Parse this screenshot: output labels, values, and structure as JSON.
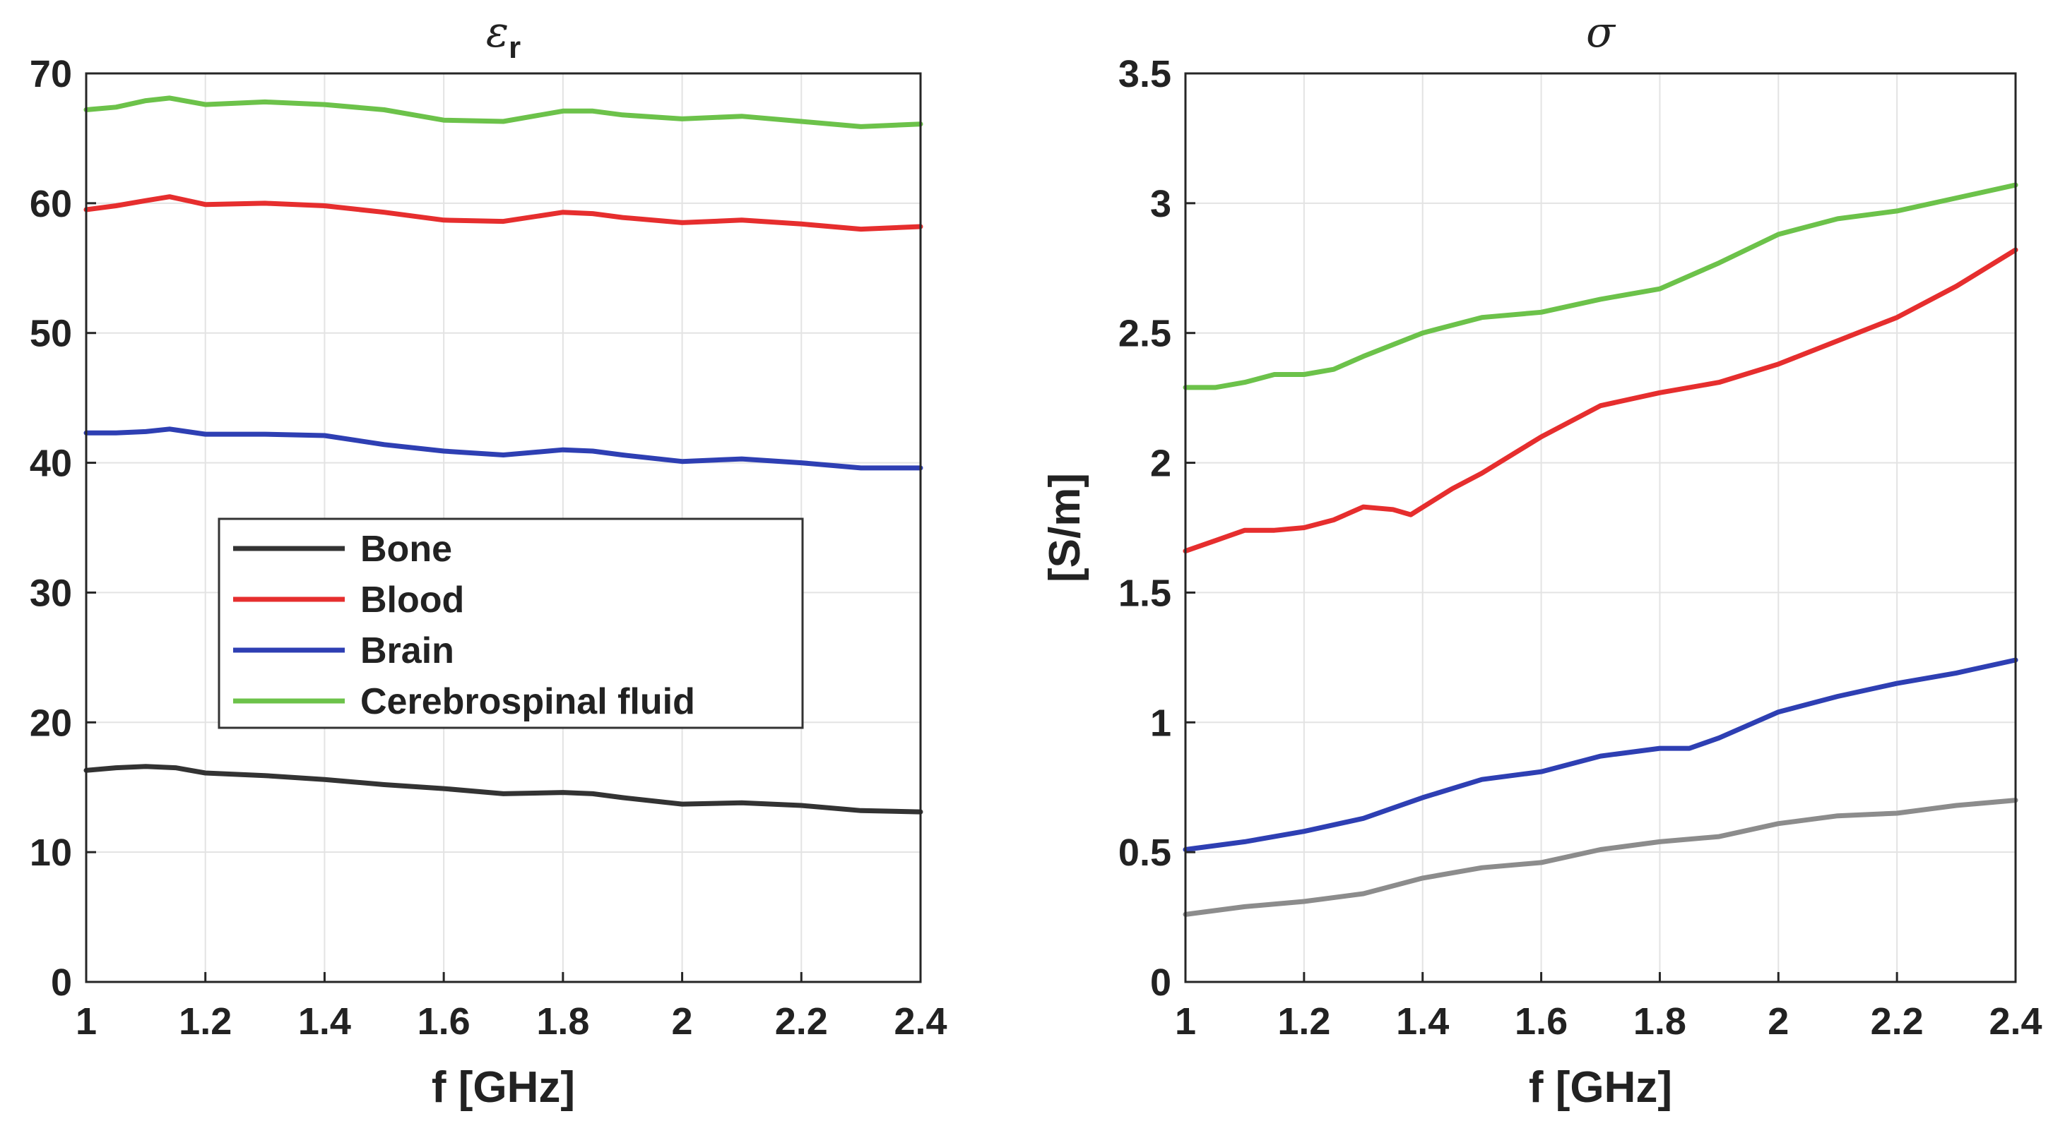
{
  "chart_data": [
    {
      "type": "line",
      "title": "ε",
      "title_subscript": "r",
      "xlabel": "f [GHz]",
      "ylabel": "",
      "xlim": [
        1,
        2.4
      ],
      "ylim": [
        0,
        70
      ],
      "xticks": [
        1,
        1.2,
        1.4,
        1.6,
        1.8,
        2,
        2.2,
        2.4
      ],
      "xtick_labels": [
        "1",
        "1.2",
        "1.4",
        "1.6",
        "1.8",
        "2",
        "2.2",
        "2.4"
      ],
      "yticks": [
        0,
        10,
        20,
        30,
        40,
        50,
        60,
        70
      ],
      "ytick_labels": [
        "0",
        "10",
        "20",
        "30",
        "40",
        "50",
        "60",
        "70"
      ],
      "grid": true,
      "legend": {
        "position": "center-left",
        "entries": [
          {
            "label": "Bone",
            "color": "#333333"
          },
          {
            "label": "Blood",
            "color": "#e62e2e"
          },
          {
            "label": "Brain",
            "color": "#2e3fb3"
          },
          {
            "label": "Cerebrospinal fluid",
            "color": "#6cc24a"
          }
        ]
      },
      "series": [
        {
          "name": "Bone",
          "color": "#333333",
          "x": [
            1,
            1.05,
            1.1,
            1.15,
            1.2,
            1.3,
            1.4,
            1.5,
            1.6,
            1.7,
            1.8,
            1.85,
            1.9,
            2,
            2.1,
            2.2,
            2.3,
            2.4
          ],
          "y": [
            16.3,
            16.5,
            16.6,
            16.5,
            16.1,
            15.9,
            15.6,
            15.2,
            14.9,
            14.5,
            14.6,
            14.5,
            14.2,
            13.7,
            13.8,
            13.6,
            13.2,
            13.1
          ]
        },
        {
          "name": "Blood",
          "color": "#e62e2e",
          "x": [
            1,
            1.05,
            1.1,
            1.14,
            1.2,
            1.3,
            1.4,
            1.5,
            1.6,
            1.7,
            1.8,
            1.85,
            1.9,
            2,
            2.1,
            2.2,
            2.3,
            2.4
          ],
          "y": [
            59.5,
            59.8,
            60.2,
            60.5,
            59.9,
            60.0,
            59.8,
            59.3,
            58.7,
            58.6,
            59.3,
            59.2,
            58.9,
            58.5,
            58.7,
            58.4,
            58.0,
            58.2
          ]
        },
        {
          "name": "Brain",
          "color": "#2e3fb3",
          "x": [
            1,
            1.05,
            1.1,
            1.14,
            1.2,
            1.3,
            1.4,
            1.5,
            1.6,
            1.7,
            1.8,
            1.85,
            1.9,
            2,
            2.1,
            2.2,
            2.3,
            2.4
          ],
          "y": [
            42.3,
            42.3,
            42.4,
            42.6,
            42.2,
            42.2,
            42.1,
            41.4,
            40.9,
            40.6,
            41.0,
            40.9,
            40.6,
            40.1,
            40.3,
            40.0,
            39.6,
            39.6
          ]
        },
        {
          "name": "Cerebrospinal fluid",
          "color": "#6cc24a",
          "x": [
            1,
            1.05,
            1.1,
            1.14,
            1.2,
            1.3,
            1.4,
            1.5,
            1.6,
            1.7,
            1.8,
            1.85,
            1.9,
            2,
            2.1,
            2.2,
            2.3,
            2.4
          ],
          "y": [
            67.2,
            67.4,
            67.9,
            68.1,
            67.6,
            67.8,
            67.6,
            67.2,
            66.4,
            66.3,
            67.1,
            67.1,
            66.8,
            66.5,
            66.7,
            66.3,
            65.9,
            66.1
          ]
        }
      ]
    },
    {
      "type": "line",
      "title": "σ",
      "xlabel": "f [GHz]",
      "ylabel": "[S/m]",
      "xlim": [
        1,
        2.4
      ],
      "ylim": [
        0,
        3.5
      ],
      "xticks": [
        1,
        1.2,
        1.4,
        1.6,
        1.8,
        2,
        2.2,
        2.4
      ],
      "xtick_labels": [
        "1",
        "1.2",
        "1.4",
        "1.6",
        "1.8",
        "2",
        "2.2",
        "2.4"
      ],
      "yticks": [
        0,
        0.5,
        1,
        1.5,
        2,
        2.5,
        3,
        3.5
      ],
      "ytick_labels": [
        "0",
        "0.5",
        "1",
        "1.5",
        "2",
        "2.5",
        "3",
        "3.5"
      ],
      "grid": true,
      "series": [
        {
          "name": "Bone",
          "color": "#8c8c8c",
          "x": [
            1,
            1.1,
            1.2,
            1.3,
            1.4,
            1.5,
            1.6,
            1.7,
            1.8,
            1.9,
            2,
            2.1,
            2.2,
            2.3,
            2.4
          ],
          "y": [
            0.26,
            0.29,
            0.31,
            0.34,
            0.4,
            0.44,
            0.46,
            0.51,
            0.54,
            0.56,
            0.61,
            0.64,
            0.65,
            0.68,
            0.7
          ]
        },
        {
          "name": "Blood",
          "color": "#e62e2e",
          "x": [
            1,
            1.05,
            1.1,
            1.15,
            1.2,
            1.25,
            1.3,
            1.35,
            1.38,
            1.45,
            1.5,
            1.6,
            1.7,
            1.8,
            1.9,
            2,
            2.1,
            2.2,
            2.3,
            2.4
          ],
          "y": [
            1.66,
            1.7,
            1.74,
            1.74,
            1.75,
            1.78,
            1.83,
            1.82,
            1.8,
            1.9,
            1.96,
            2.1,
            2.22,
            2.27,
            2.31,
            2.38,
            2.47,
            2.56,
            2.68,
            2.82
          ]
        },
        {
          "name": "Brain",
          "color": "#2e3fb3",
          "x": [
            1,
            1.1,
            1.2,
            1.3,
            1.4,
            1.5,
            1.6,
            1.7,
            1.8,
            1.85,
            1.9,
            2,
            2.1,
            2.2,
            2.3,
            2.4
          ],
          "y": [
            0.51,
            0.54,
            0.58,
            0.63,
            0.71,
            0.78,
            0.81,
            0.87,
            0.9,
            0.9,
            0.94,
            1.04,
            1.1,
            1.15,
            1.19,
            1.24
          ]
        },
        {
          "name": "Cerebrospinal fluid",
          "color": "#6cc24a",
          "x": [
            1,
            1.05,
            1.1,
            1.15,
            1.2,
            1.25,
            1.3,
            1.4,
            1.5,
            1.6,
            1.7,
            1.8,
            1.9,
            2,
            2.1,
            2.2,
            2.3,
            2.4
          ],
          "y": [
            2.29,
            2.29,
            2.31,
            2.34,
            2.34,
            2.36,
            2.41,
            2.5,
            2.56,
            2.58,
            2.63,
            2.67,
            2.77,
            2.88,
            2.94,
            2.97,
            3.02,
            3.07
          ]
        }
      ]
    }
  ]
}
